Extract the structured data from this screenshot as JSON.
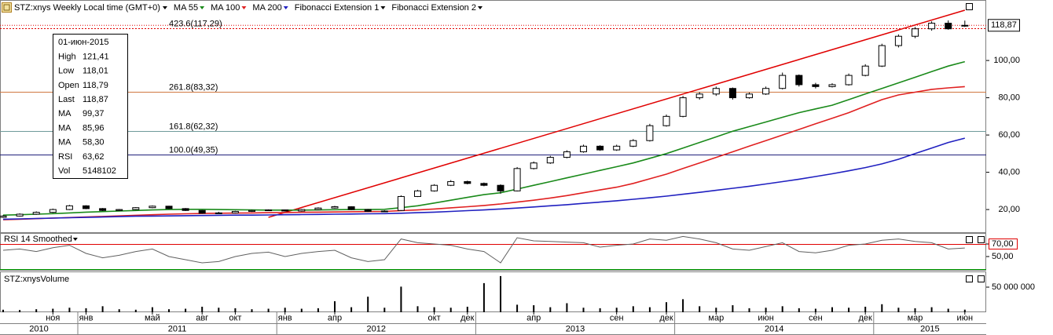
{
  "chart_data": {
    "type": "candlestick",
    "title": "STZ:xnys Weekly Local time (GMT+0)",
    "categories": [
      "2010-08",
      "2010-09",
      "2010-10",
      "2010-11",
      "2010-12",
      "2011-01",
      "2011-02",
      "2011-03",
      "2011-04",
      "2011-05",
      "2011-06",
      "2011-07",
      "2011-08",
      "2011-09",
      "2011-10",
      "2011-11",
      "2011-12",
      "2012-01",
      "2012-02",
      "2012-03",
      "2012-04",
      "2012-05",
      "2012-06",
      "2012-07",
      "2012-08",
      "2012-09",
      "2012-10",
      "2012-11",
      "2012-12",
      "2013-01",
      "2013-02",
      "2013-03",
      "2013-04",
      "2013-05",
      "2013-06",
      "2013-07",
      "2013-08",
      "2013-09",
      "2013-10",
      "2013-11",
      "2013-12",
      "2014-01",
      "2014-02",
      "2014-03",
      "2014-04",
      "2014-05",
      "2014-06",
      "2014-07",
      "2014-08",
      "2014-09",
      "2014-10",
      "2014-11",
      "2014-12",
      "2015-01",
      "2015-02",
      "2015-03",
      "2015-04",
      "2015-05",
      "2015-06"
    ],
    "open": [
      15.8,
      16.5,
      17.5,
      18.5,
      20,
      22,
      20.5,
      19.5,
      20,
      21,
      21.8,
      20.5,
      19.5,
      18,
      18.2,
      19,
      19.5,
      19.8,
      19.2,
      20,
      20.8,
      21.5,
      20,
      19,
      19.5,
      27,
      30,
      33,
      35,
      34,
      33,
      30,
      42,
      45,
      48,
      51,
      54,
      52,
      54,
      57,
      65,
      70,
      80,
      82,
      85,
      80,
      82,
      85,
      92,
      87,
      86,
      87,
      92,
      97,
      108,
      113,
      117,
      120,
      118.79
    ],
    "high": [
      17,
      18,
      19,
      20.5,
      22.5,
      22.3,
      20.8,
      20.3,
      21.3,
      22.2,
      22,
      20.8,
      19.7,
      18.8,
      19.3,
      19.8,
      20.1,
      20,
      20.3,
      21.2,
      22,
      21.8,
      20.3,
      19.6,
      27.6,
      30.6,
      33.6,
      35.8,
      35.5,
      34.5,
      33.5,
      42.8,
      45.8,
      48.8,
      51.8,
      54.8,
      54.5,
      54.8,
      57.8,
      66,
      71,
      81,
      83,
      86,
      85.5,
      82.8,
      86,
      93.5,
      92.5,
      88,
      87.8,
      93,
      98,
      109,
      114,
      118,
      121,
      121.5,
      121.41
    ],
    "low": [
      15.5,
      16.2,
      17.2,
      18.2,
      19.7,
      20.2,
      19.2,
      19.2,
      19.7,
      20.7,
      20.2,
      19.2,
      17.7,
      17.7,
      17.9,
      18.7,
      19.2,
      18.9,
      18.9,
      19.7,
      20.5,
      19.7,
      18.7,
      18.7,
      19.2,
      26.7,
      29.6,
      32.6,
      33.5,
      32.5,
      28.5,
      29.7,
      41.5,
      44.5,
      47.5,
      50.5,
      51.5,
      51.5,
      53.5,
      56.5,
      64.5,
      69.5,
      79,
      81,
      79,
      79.5,
      81.5,
      84.5,
      86,
      85,
      85.5,
      86.5,
      91.5,
      96.5,
      107,
      112,
      116,
      116.5,
      118.01
    ],
    "close": [
      16.5,
      17.5,
      18.5,
      20,
      22,
      20.5,
      19.5,
      20,
      21,
      21.8,
      20.5,
      19.5,
      18,
      18.2,
      19,
      19.5,
      19.8,
      19.2,
      20,
      20.8,
      21.5,
      20,
      19,
      19.2,
      27,
      30,
      33,
      35,
      34,
      33,
      30,
      42,
      45,
      48,
      51,
      54,
      52,
      54,
      57,
      65,
      70,
      80,
      82,
      85,
      80,
      82,
      85,
      92,
      87,
      86,
      87,
      92,
      97,
      108,
      113,
      117,
      120,
      117,
      118.87
    ],
    "up_color": "#ffffff",
    "down_color": "#000000",
    "series": [
      {
        "name": "MA 55",
        "color": "#1a8a1a",
        "values": [
          17,
          17.2,
          17.5,
          17.8,
          18.2,
          18.6,
          18.9,
          19.2,
          19.5,
          19.8,
          20,
          20.1,
          20.1,
          20,
          19.9,
          19.8,
          19.7,
          19.7,
          19.7,
          19.8,
          19.9,
          20,
          20,
          20.1,
          21,
          22,
          23.5,
          25,
          26.5,
          28,
          29,
          31,
          33,
          35,
          37,
          39,
          41,
          43,
          45,
          47.5,
          50,
          53,
          56,
          59,
          62,
          64.5,
          67,
          69.5,
          72,
          74,
          76,
          79,
          82,
          85,
          88,
          91,
          94,
          97,
          99.37
        ]
      },
      {
        "name": "MA 100",
        "color": "#e02020",
        "values": [
          14.5,
          14.8,
          15.1,
          15.4,
          15.7,
          16,
          16.3,
          16.6,
          16.9,
          17.2,
          17.5,
          17.7,
          17.9,
          18,
          18.1,
          18.2,
          18.3,
          18.4,
          18.5,
          18.6,
          18.7,
          18.8,
          18.9,
          19,
          19.4,
          19.8,
          20.3,
          20.9,
          21.5,
          22.2,
          23,
          24,
          25,
          26.2,
          27.5,
          29,
          30.5,
          32,
          34,
          36.5,
          39,
          42,
          45,
          48,
          51,
          54,
          57,
          60,
          63,
          66,
          69,
          72,
          75.5,
          79,
          81.5,
          83,
          84.5,
          85.3,
          85.96
        ]
      },
      {
        "name": "MA 200",
        "color": "#2020c0",
        "values": [
          14.8,
          15,
          15.2,
          15.4,
          15.6,
          15.8,
          16,
          16.2,
          16.4,
          16.5,
          16.6,
          16.7,
          16.8,
          16.9,
          17,
          17,
          17.1,
          17.2,
          17.3,
          17.4,
          17.5,
          17.6,
          17.7,
          17.8,
          18,
          18.3,
          18.6,
          19,
          19.4,
          19.8,
          20.3,
          20.8,
          21.4,
          22,
          22.6,
          23.3,
          24,
          24.7,
          25.5,
          26.3,
          27.2,
          28.2,
          29.2,
          30.3,
          31.4,
          32.5,
          33.7,
          35,
          36.3,
          37.7,
          39.2,
          40.8,
          42.5,
          44.5,
          47,
          50,
          53,
          56,
          58.3
        ]
      }
    ],
    "overlays": [
      "Fibonacci Extension 1",
      "Fibonacci Extension 2"
    ],
    "fib_levels": [
      {
        "label": "423.6(117,29)",
        "value": 117.29,
        "color": "#e00000",
        "dotted": true
      },
      {
        "label": "261.8(83,32)",
        "value": 83.32,
        "color": "#d07840",
        "dotted": false
      },
      {
        "label": "161.8(62,32)",
        "value": 62.32,
        "color": "#6f9a9a",
        "dotted": false
      },
      {
        "label": "100.0(49,35)",
        "value": 49.35,
        "color": "#20207a",
        "dotted": false
      }
    ],
    "trendline": {
      "color": "#e00000",
      "x": [
        "2011-12",
        "2015-06"
      ],
      "y": [
        15.8,
        127
      ]
    },
    "ylim": [
      7.4,
      131.2
    ],
    "yticks": [
      {
        "value": 20,
        "label": "20,00"
      },
      {
        "value": 40,
        "label": "40,00"
      },
      {
        "value": 60,
        "label": "60,00"
      },
      {
        "value": 80,
        "label": "80,00"
      },
      {
        "value": 100,
        "label": "100,00"
      }
    ],
    "price_label": "118,87",
    "info": {
      "date": "01-июн-2015",
      "rows": [
        {
          "label": "High",
          "value": "121,41",
          "color": "#000000"
        },
        {
          "label": "Low",
          "value": "118,01",
          "color": "#000000"
        },
        {
          "label": "Open",
          "value": "118,79",
          "color": "#000000"
        },
        {
          "label": "Last",
          "value": "118,87",
          "color": "#000000"
        },
        {
          "label": "MA",
          "value": "99,37",
          "color": "#1a8a1a"
        },
        {
          "label": "MA",
          "value": "85,96",
          "color": "#e02020"
        },
        {
          "label": "MA",
          "value": "58,30",
          "color": "#2020c0"
        },
        {
          "label": "RSI",
          "value": "63,62",
          "color": "#000000"
        },
        {
          "label": "Vol",
          "value": "5148102",
          "color": "#000000"
        }
      ]
    },
    "x_month_ticks": [
      {
        "value": "2010-11",
        "label": "ноя"
      },
      {
        "value": "2011-01",
        "label": "янв"
      },
      {
        "value": "2011-05",
        "label": "май"
      },
      {
        "value": "2011-08",
        "label": "авг"
      },
      {
        "value": "2011-10",
        "label": "окт"
      },
      {
        "value": "2012-01",
        "label": "янв"
      },
      {
        "value": "2012-04",
        "label": "апр"
      },
      {
        "value": "2012-10",
        "label": "окт"
      },
      {
        "value": "2012-12",
        "label": "дек"
      },
      {
        "value": "2013-04",
        "label": "апр"
      },
      {
        "value": "2013-09",
        "label": "сен"
      },
      {
        "value": "2013-12",
        "label": "дек"
      },
      {
        "value": "2014-03",
        "label": "мар"
      },
      {
        "value": "2014-06",
        "label": "июн"
      },
      {
        "value": "2014-09",
        "label": "сен"
      },
      {
        "value": "2014-12",
        "label": "дек"
      },
      {
        "value": "2015-03",
        "label": "мар"
      },
      {
        "value": "2015-06",
        "label": "июн"
      }
    ],
    "x_year_ticks": [
      {
        "value": "2010-08",
        "label": "2010"
      },
      {
        "value": "2011-01",
        "label": "2011"
      },
      {
        "value": "2012-01",
        "label": "2012"
      },
      {
        "value": "2013-01",
        "label": "2013"
      },
      {
        "value": "2014-01",
        "label": "2014"
      },
      {
        "value": "2015-01",
        "label": "2015"
      }
    ],
    "rsi": {
      "title": "RSI 14 Smoothed",
      "color": "#606060",
      "values": [
        60,
        62,
        58,
        64,
        68,
        55,
        48,
        52,
        58,
        62,
        50,
        45,
        40,
        42,
        50,
        55,
        57,
        50,
        55,
        58,
        60,
        48,
        42,
        45,
        78,
        72,
        70,
        68,
        62,
        58,
        40,
        80,
        75,
        74,
        73,
        72,
        65,
        68,
        70,
        78,
        76,
        82,
        78,
        72,
        62,
        60,
        66,
        72,
        58,
        56,
        60,
        68,
        70,
        76,
        78,
        74,
        72,
        62,
        63.62
      ],
      "ylim": [
        30,
        86.25
      ],
      "yticks": [
        {
          "value": 70,
          "label": "70,00"
        },
        {
          "value": 50,
          "label": "50,00"
        }
      ],
      "levels": [
        {
          "value": 70,
          "color": "#e00000"
        },
        {
          "value": 30,
          "color": "#00a000"
        }
      ]
    },
    "volume": {
      "title": "STZ:xnysVolume",
      "color": "#000000",
      "values": [
        5000000,
        4500000,
        6000000,
        7000000,
        9000000,
        8000000,
        12000000,
        6000000,
        5000000,
        10000000,
        6000000,
        7000000,
        11000000,
        9000000,
        8000000,
        6000000,
        7000000,
        9000000,
        7000000,
        8000000,
        22000000,
        10000000,
        31000000,
        9000000,
        51000000,
        12000000,
        10000000,
        9000000,
        11000000,
        58000000,
        72000000,
        15000000,
        14000000,
        10000000,
        18000000,
        9000000,
        8000000,
        9000000,
        12000000,
        10000000,
        20000000,
        26000000,
        12000000,
        9000000,
        14000000,
        8000000,
        9000000,
        12000000,
        8000000,
        7000000,
        10000000,
        9000000,
        11000000,
        16000000,
        9000000,
        8000000,
        10000000,
        7000000,
        5148102
      ],
      "ylim": [
        0,
        79700000
      ],
      "yticks": [
        {
          "value": 50000000,
          "label": "50 000 000"
        }
      ]
    }
  }
}
